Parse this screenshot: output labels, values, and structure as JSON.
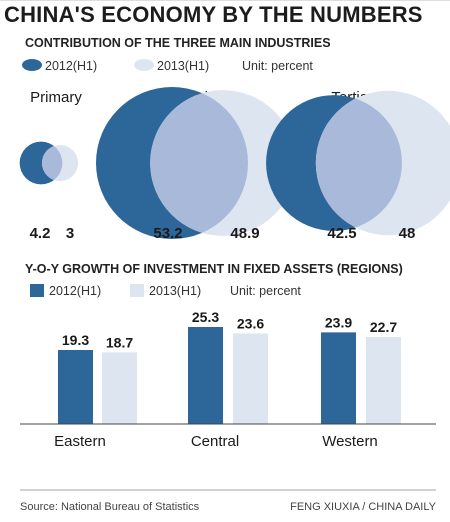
{
  "title": "CHINA'S ECONOMY BY THE NUMBERS",
  "colors": {
    "h1_2012": "#2d6699",
    "h1_2013": "#dde5f1",
    "overlap": "#a9b9da"
  },
  "section1": {
    "subtitle": "CONTRIBUTION OF THE THREE MAIN INDUSTRIES",
    "legend": {
      "a": "2012(H1)",
      "b": "2013(H1)",
      "unit": "Unit: percent"
    }
  },
  "section2": {
    "subtitle": "Y-O-Y GROWTH OF INVESTMENT IN FIXED ASSETS (REGIONS)",
    "legend": {
      "a": "2012(H1)",
      "b": "2013(H1)",
      "unit": "Unit: percent"
    }
  },
  "chart_data": [
    {
      "type": "area",
      "subtype": "proportional-circles",
      "title": "CONTRIBUTION OF THE THREE MAIN INDUSTRIES",
      "unit": "percent",
      "categories": [
        "Primary",
        "Secondary",
        "Tertiary"
      ],
      "series": [
        {
          "name": "2012(H1)",
          "values": [
            4.2,
            53.2,
            42.5
          ]
        },
        {
          "name": "2013(H1)",
          "values": [
            3,
            48.9,
            48
          ]
        }
      ],
      "legend": "top-left"
    },
    {
      "type": "bar",
      "title": "Y-O-Y GROWTH OF INVESTMENT IN FIXED ASSETS (REGIONS)",
      "unit": "percent",
      "categories": [
        "Eastern",
        "Central",
        "Western"
      ],
      "series": [
        {
          "name": "2012(H1)",
          "values": [
            19.3,
            25.3,
            23.9
          ]
        },
        {
          "name": "2013(H1)",
          "values": [
            18.7,
            23.6,
            22.7
          ]
        }
      ],
      "ylim": [
        0,
        27
      ],
      "grid": false,
      "legend": "top-left"
    }
  ],
  "footer": {
    "source": "Source: National Bureau of Statistics",
    "credit": "FENG XIUXIA / CHINA DAILY"
  }
}
